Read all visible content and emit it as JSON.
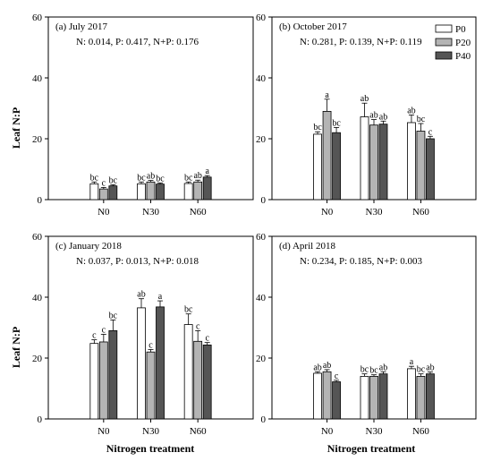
{
  "figure": {
    "ylabel": "Leaf N:P",
    "xlabel": "Nitrogen treatment"
  },
  "legend": {
    "placement": "top-right of panel (b)",
    "entries": [
      {
        "name": "P0",
        "color": "#ffffff"
      },
      {
        "name": "P20",
        "color": "#b4b4b4"
      },
      {
        "name": "P40",
        "color": "#555555"
      }
    ]
  },
  "chart_data": [
    {
      "type": "bar",
      "title": "(a) July 2017",
      "stats": "N: 0.014, P: 0.417, N+P: 0.176",
      "categories": [
        "N0",
        "N30",
        "N60"
      ],
      "ylim": [
        0,
        60
      ],
      "yticks": [
        "0",
        "20",
        "40",
        "60"
      ],
      "series": [
        {
          "name": "P0",
          "values": [
            5.2,
            5.2,
            5.3
          ],
          "errors": [
            0.6,
            0.6,
            0.5
          ],
          "letters": [
            "bc",
            "bc",
            "bc"
          ]
        },
        {
          "name": "P20",
          "values": [
            3.5,
            5.8,
            5.8
          ],
          "errors": [
            0.5,
            0.5,
            0.6
          ],
          "letters": [
            "c",
            "ab",
            "ab"
          ]
        },
        {
          "name": "P40",
          "values": [
            4.5,
            5.1,
            7.4
          ],
          "errors": [
            0.4,
            0.4,
            0.5
          ],
          "letters": [
            "bc",
            "bc",
            "a"
          ]
        }
      ]
    },
    {
      "type": "bar",
      "title": "(b) October 2017",
      "stats": "N: 0.281, P: 0.139, N+P: 0.119",
      "categories": [
        "N0",
        "N30",
        "N60"
      ],
      "ylim": [
        0,
        60
      ],
      "yticks": [
        "0",
        "20",
        "40",
        "60"
      ],
      "series": [
        {
          "name": "P0",
          "values": [
            21.5,
            27.2,
            25.3
          ],
          "errors": [
            0.8,
            4.5,
            2.5
          ],
          "letters": [
            "bc",
            "ab",
            "ab"
          ]
        },
        {
          "name": "P20",
          "values": [
            29.0,
            24.5,
            22.5
          ],
          "errors": [
            4.0,
            1.8,
            2.5
          ],
          "letters": [
            "a",
            "ab",
            "bc"
          ]
        },
        {
          "name": "P40",
          "values": [
            22.0,
            24.8,
            20.0
          ],
          "errors": [
            1.7,
            1.0,
            0.8
          ],
          "letters": [
            "bc",
            "ab",
            "c"
          ]
        }
      ]
    },
    {
      "type": "bar",
      "title": "(c) January 2018",
      "stats": "N: 0.037, P: 0.013, N+P: 0.018",
      "categories": [
        "N0",
        "N30",
        "N60"
      ],
      "ylim": [
        0,
        60
      ],
      "yticks": [
        "0",
        "20",
        "40",
        "60"
      ],
      "series": [
        {
          "name": "P0",
          "values": [
            24.8,
            36.5,
            31.0
          ],
          "errors": [
            1.2,
            3.0,
            3.5
          ],
          "letters": [
            "c",
            "ab",
            "bc"
          ]
        },
        {
          "name": "P20",
          "values": [
            25.3,
            22.0,
            25.5
          ],
          "errors": [
            2.5,
            0.8,
            3.5
          ],
          "letters": [
            "c",
            "c",
            "c"
          ]
        },
        {
          "name": "P40",
          "values": [
            29.0,
            36.8,
            24.3
          ],
          "errors": [
            3.5,
            2.0,
            0.8
          ],
          "letters": [
            "bc",
            "a",
            "c"
          ]
        }
      ]
    },
    {
      "type": "bar",
      "title": "(d) April 2018",
      "stats": "N: 0.234, P: 0.185, N+P: 0.003",
      "categories": [
        "N0",
        "N30",
        "N60"
      ],
      "ylim": [
        0,
        60
      ],
      "yticks": [
        "0",
        "20",
        "40",
        "60"
      ],
      "series": [
        {
          "name": "P0",
          "values": [
            15.0,
            14.0,
            16.5
          ],
          "errors": [
            0.5,
            0.8,
            0.8
          ],
          "letters": [
            "ab",
            "bc",
            "a"
          ]
        },
        {
          "name": "P20",
          "values": [
            15.5,
            14.0,
            14.0
          ],
          "errors": [
            0.7,
            0.5,
            0.8
          ],
          "letters": [
            "ab",
            "bc",
            "bc"
          ]
        },
        {
          "name": "P40",
          "values": [
            12.2,
            14.8,
            14.8
          ],
          "errors": [
            0.5,
            0.7,
            0.6
          ],
          "letters": [
            "c",
            "ab",
            "ab"
          ]
        }
      ]
    }
  ]
}
